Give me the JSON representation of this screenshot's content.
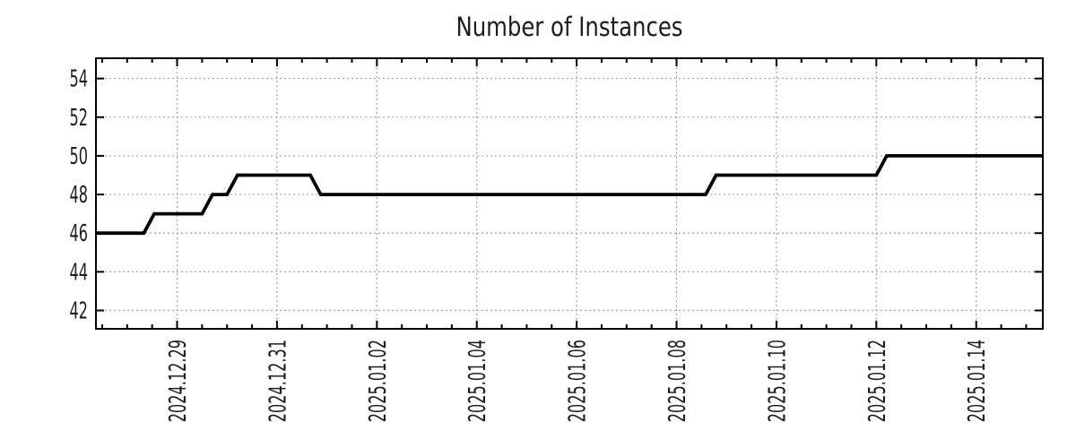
{
  "chart_data": {
    "type": "line",
    "subtype": "step",
    "title": "Number of Instances",
    "legend": "none",
    "grid": "dotted",
    "background_color": "#ffffff",
    "line_color": "#000000",
    "grid_color": "#a3a3a3",
    "axis_color": "#000000",
    "text_color": "#1c1c1c",
    "series": [
      {
        "name": "instances",
        "points": [
          [
            "2024-12-27T09:00:00",
            46
          ],
          [
            "2024-12-28T08:00:00",
            46
          ],
          [
            "2024-12-28T13:00:00",
            47
          ],
          [
            "2024-12-29T12:00:00",
            47
          ],
          [
            "2024-12-29T17:00:00",
            48
          ],
          [
            "2024-12-30T00:00:00",
            48
          ],
          [
            "2024-12-30T05:00:00",
            49
          ],
          [
            "2024-12-31T16:00:00",
            49
          ],
          [
            "2024-12-31T21:00:00",
            48
          ],
          [
            "2025-01-08T14:00:00",
            48
          ],
          [
            "2025-01-08T19:00:00",
            49
          ],
          [
            "2025-01-12T00:00:00",
            49
          ],
          [
            "2025-01-12T05:00:00",
            50
          ],
          [
            "2025-01-15T08:00:00",
            50
          ]
        ]
      }
    ],
    "x_axis": {
      "range": [
        "2024-12-27T09:00:00",
        "2025-01-15T08:00:00"
      ],
      "minor_tick_interval_hours": 12,
      "major_ticks": [
        {
          "date": "2024-12-29T00:00:00",
          "label": "2024.12.29"
        },
        {
          "date": "2024-12-31T00:00:00",
          "label": "2024.12.31"
        },
        {
          "date": "2025-01-02T00:00:00",
          "label": "2025.01.02"
        },
        {
          "date": "2025-01-04T00:00:00",
          "label": "2025.01.04"
        },
        {
          "date": "2025-01-06T00:00:00",
          "label": "2025.01.06"
        },
        {
          "date": "2025-01-08T00:00:00",
          "label": "2025.01.08"
        },
        {
          "date": "2025-01-10T00:00:00",
          "label": "2025.01.10"
        },
        {
          "date": "2025-01-12T00:00:00",
          "label": "2025.01.12"
        },
        {
          "date": "2025-01-14T00:00:00",
          "label": "2025.01.14"
        }
      ]
    },
    "y_axis": {
      "range": [
        41.05,
        55.05
      ],
      "ticks": [
        42,
        44,
        46,
        48,
        50,
        52,
        54
      ]
    }
  }
}
